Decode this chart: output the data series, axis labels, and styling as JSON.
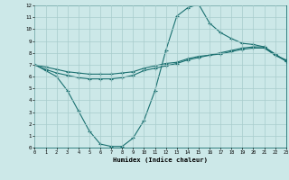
{
  "xlabel": "Humidex (Indice chaleur)",
  "bg_color": "#cce8e8",
  "line_color": "#1a7070",
  "grid_color": "#a8cccc",
  "xlim": [
    0,
    23
  ],
  "ylim": [
    0,
    12
  ],
  "xticks": [
    0,
    1,
    2,
    3,
    4,
    5,
    6,
    7,
    8,
    9,
    10,
    11,
    12,
    13,
    14,
    15,
    16,
    17,
    18,
    19,
    20,
    21,
    22,
    23
  ],
  "yticks": [
    0,
    1,
    2,
    3,
    4,
    5,
    6,
    7,
    8,
    9,
    10,
    11,
    12
  ],
  "line1_x": [
    0,
    1,
    2,
    3,
    4,
    5,
    6,
    7,
    8,
    9,
    10,
    11,
    12,
    13,
    14,
    15,
    16,
    17,
    18,
    19,
    20,
    21,
    22,
    23
  ],
  "line1_y": [
    7.0,
    6.5,
    6.0,
    4.8,
    3.1,
    1.4,
    0.3,
    0.1,
    0.1,
    0.8,
    2.3,
    4.8,
    8.2,
    11.1,
    11.8,
    12.1,
    10.5,
    9.7,
    9.2,
    8.8,
    8.7,
    8.5,
    7.9,
    7.3
  ],
  "line2_x": [
    0,
    1,
    2,
    3,
    4,
    5,
    6,
    7,
    8,
    9,
    10,
    11,
    12,
    13,
    14,
    15,
    16,
    17,
    18,
    19,
    20,
    21,
    22,
    23
  ],
  "line2_y": [
    7.0,
    6.6,
    6.3,
    6.1,
    5.9,
    5.8,
    5.8,
    5.8,
    5.9,
    6.1,
    6.5,
    6.7,
    6.9,
    7.1,
    7.4,
    7.6,
    7.8,
    8.0,
    8.2,
    8.4,
    8.5,
    8.5,
    7.8,
    7.3
  ],
  "line3_x": [
    0,
    1,
    2,
    3,
    4,
    5,
    6,
    7,
    8,
    9,
    10,
    11,
    12,
    13,
    14,
    15,
    16,
    17,
    18,
    19,
    20,
    21,
    22,
    23
  ],
  "line3_y": [
    7.0,
    6.8,
    6.6,
    6.4,
    6.3,
    6.2,
    6.2,
    6.2,
    6.3,
    6.4,
    6.7,
    6.9,
    7.1,
    7.2,
    7.5,
    7.7,
    7.8,
    7.9,
    8.1,
    8.3,
    8.4,
    8.4,
    7.8,
    7.4
  ]
}
